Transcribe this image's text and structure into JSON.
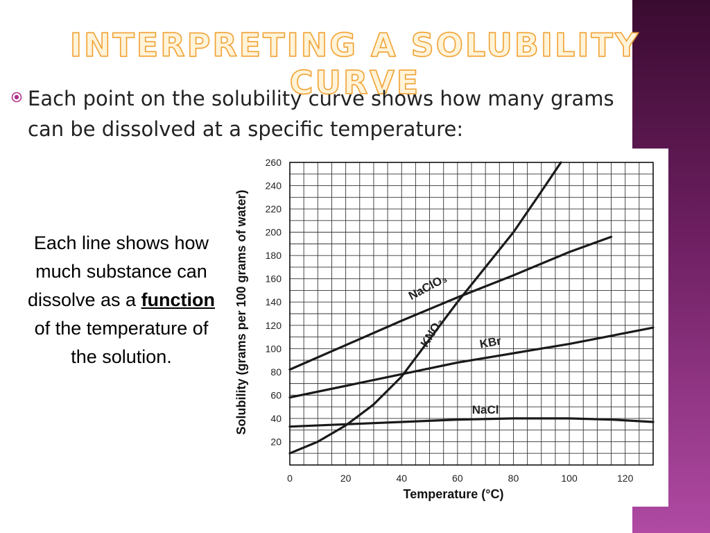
{
  "slide": {
    "title": "INTERPRETING A SOLUBILITY CURVE",
    "bullet": "Each point on the solubility curve shows how many grams can be dissolved at a specific temperature:",
    "side_text": {
      "before": "Each line shows how much substance can dissolve as a",
      "emphasis": "function",
      "after": "of the temperature of the solution."
    },
    "colors": {
      "title_fill": "#fff3d8",
      "title_outline": "#f0a030",
      "band": "#6e1f62"
    }
  },
  "chart_data": {
    "type": "line",
    "xlabel": "Temperature (°C)",
    "ylabel": "Solubility (grams per 100 grams of water)",
    "xlim": [
      0,
      130
    ],
    "ylim": [
      0,
      260
    ],
    "xticks": [
      0,
      20,
      40,
      60,
      80,
      100,
      120
    ],
    "yticks": [
      20,
      40,
      60,
      80,
      100,
      120,
      140,
      160,
      180,
      200,
      220,
      240,
      260
    ],
    "grid": true,
    "series": [
      {
        "name": "NaClO3",
        "x": [
          0,
          20,
          40,
          60,
          80,
          100,
          115
        ],
        "y": [
          82,
          103,
          124,
          144,
          163,
          183,
          196
        ]
      },
      {
        "name": "KNO3",
        "x": [
          0,
          10,
          20,
          30,
          40,
          50,
          60,
          70,
          80,
          90,
          97
        ],
        "y": [
          10,
          20,
          34,
          52,
          76,
          108,
          140,
          170,
          200,
          235,
          260
        ]
      },
      {
        "name": "KBr",
        "x": [
          0,
          20,
          40,
          60,
          80,
          100,
          130
        ],
        "y": [
          58,
          68,
          78,
          88,
          96,
          104,
          118
        ]
      },
      {
        "name": "NaCl",
        "x": [
          0,
          20,
          40,
          60,
          80,
          100,
          115,
          130
        ],
        "y": [
          33,
          35,
          37,
          39,
          40,
          40,
          39,
          37
        ]
      }
    ],
    "series_labels": [
      {
        "series": "NaClO3",
        "text": "NaClO₃",
        "x": 50,
        "y": 150
      },
      {
        "series": "KNO3",
        "text": "KNO₃",
        "x": 52,
        "y": 112
      },
      {
        "series": "KBr",
        "text": "KBr",
        "x": 72,
        "y": 102
      },
      {
        "series": "NaCl",
        "text": "NaCl",
        "x": 70,
        "y": 44
      }
    ]
  }
}
